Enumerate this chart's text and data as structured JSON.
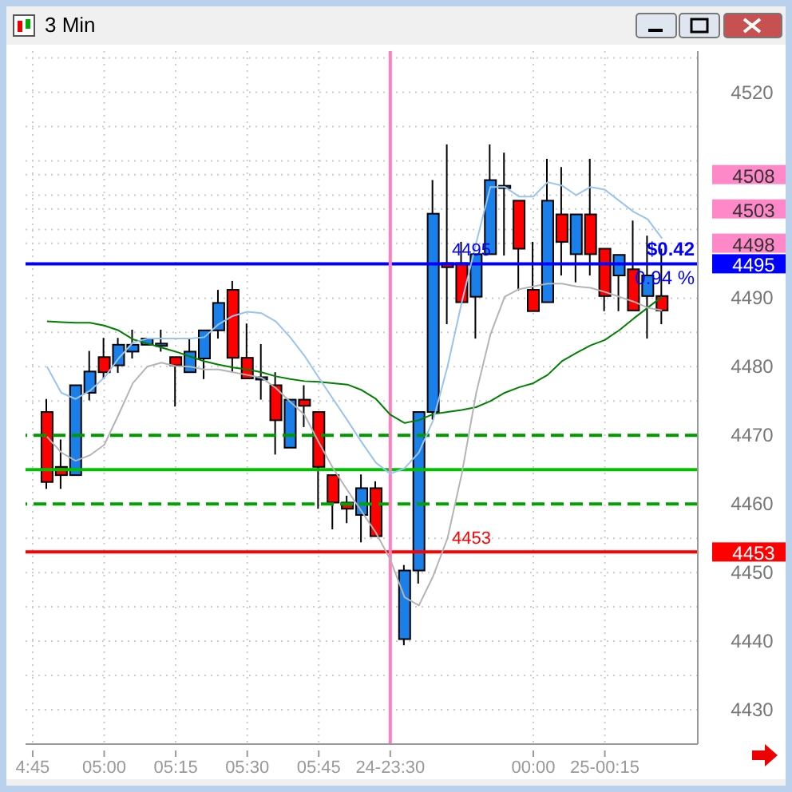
{
  "chart_data": {
    "type": "candlestick",
    "title": "3 Min",
    "categories": [
      "4:45",
      null,
      null,
      null,
      null,
      "05:00",
      null,
      null,
      null,
      null,
      "05:15",
      null,
      null,
      null,
      null,
      "05:30",
      null,
      null,
      null,
      null,
      "05:45",
      null,
      null,
      null,
      null,
      "24-23:30",
      null,
      null,
      null,
      null,
      null,
      null,
      null,
      null,
      null,
      "00:00",
      null,
      null,
      null,
      null,
      "25-00:15",
      null,
      null,
      null,
      null,
      null,
      null
    ],
    "ohlc": [
      null,
      [
        4473.4,
        4475.3,
        4462.2,
        4463.2
      ],
      [
        4465.4,
        4469.4,
        4462.2,
        4464.2
      ],
      [
        4464.2,
        4477.3,
        4464.2,
        4477.3
      ],
      [
        4476.2,
        4482.3,
        4475.1,
        4479.3
      ],
      [
        4481.4,
        4484.2,
        4478.2,
        4479.2
      ],
      [
        4480.2,
        4484.2,
        4479.1,
        4483.2
      ],
      [
        4482.2,
        4485.4,
        4481.2,
        4483.2
      ],
      [
        4483.2,
        4484.1,
        4483.2,
        4484.1
      ],
      [
        4483.2,
        4485.4,
        4482.2,
        4483.2
      ],
      [
        4481.4,
        4481.4,
        4474.2,
        4480.2
      ],
      [
        4479.2,
        4484.2,
        4479.2,
        4482.2
      ],
      [
        4481.2,
        4485.3,
        4478.2,
        4485.3
      ],
      [
        4485.3,
        4491.2,
        4484.1,
        4489.3
      ],
      [
        4491.2,
        4492.5,
        4479.2,
        4481.3
      ],
      [
        4481.3,
        4486.3,
        4478.3,
        4478.3
      ],
      [
        4478.3,
        4483.3,
        4475.2,
        4478.3
      ],
      [
        4477.3,
        4479.2,
        4467.2,
        4472.2
      ],
      [
        4468.2,
        4475.2,
        4468.2,
        4475.2
      ],
      [
        4475.2,
        4477.3,
        4471.2,
        4474.3
      ],
      [
        4473.4,
        4473.4,
        4459.3,
        4465.4
      ],
      [
        4464.2,
        4464.2,
        4456.3,
        4460.2
      ],
      [
        4460.2,
        4461.2,
        4457.2,
        4459.3
      ],
      [
        4458.4,
        4464.3,
        4454.4,
        4462.3
      ],
      [
        4462.3,
        4463.3,
        4455.3,
        4455.3
      ],
      null,
      [
        4440.3,
        4451.1,
        4439.4,
        4450.3
      ],
      [
        4450.3,
        4473.4,
        4448.4,
        4473.4
      ],
      [
        4473.4,
        4507.2,
        4472.3,
        4502.3
      ],
      [
        4495.1,
        4512.4,
        4486.2,
        4494.5
      ],
      [
        4495.1,
        4498.2,
        4489.4,
        4489.4
      ],
      [
        4490.2,
        4496.4,
        4484.1,
        4496.4
      ],
      [
        4496.4,
        4512.4,
        4496.4,
        4507.2
      ],
      [
        4506.2,
        4511.2,
        4496.2,
        4506.2
      ],
      [
        4504.2,
        4504.2,
        4491.1,
        4497.2
      ],
      [
        4491.2,
        4498.2,
        4488.1,
        4488.1
      ],
      [
        4489.4,
        4510.3,
        4489.4,
        4504.2
      ],
      [
        4502.2,
        4509.1,
        4493.3,
        4498.2
      ],
      [
        4496.4,
        4502.2,
        4492.3,
        4502.2
      ],
      [
        4502.2,
        4510.3,
        4493.3,
        4496.4
      ],
      [
        4497.2,
        4497.2,
        4488.1,
        4490.3
      ],
      [
        4493.3,
        4496.3,
        4488.1,
        4496.3
      ],
      [
        4494.2,
        4501.3,
        4488.2,
        4488.2
      ],
      [
        4490.3,
        4499.1,
        4484.1,
        4493.3
      ],
      [
        4490.3,
        4497.2,
        4486.2,
        4488.2
      ],
      null,
      null
    ],
    "colors": [
      null,
      "#ff0000",
      "#ff0000",
      "#1a7fe8",
      "#1a7fe8",
      "#ff0000",
      "#1a7fe8",
      "#1a7fe8",
      "#1a7fe8",
      "#1a7fe8",
      "#ff0000",
      "#1a7fe8",
      "#1a7fe8",
      "#1a7fe8",
      "#ff0000",
      "#ff0000",
      "#1a7fe8",
      "#ff0000",
      "#1a7fe8",
      "#ff0000",
      "#ff0000",
      "#ff0000",
      "#ff0000",
      "#1a7fe8",
      "#ff0000",
      null,
      "#1a7fe8",
      "#1a7fe8",
      "#1a7fe8",
      "#ff0000",
      "#ff0000",
      "#1a7fe8",
      "#1a7fe8",
      "#1a7fe8",
      "#ff0000",
      "#ff0000",
      "#1a7fe8",
      "#ff0000",
      "#1a7fe8",
      "#ff0000",
      "#ff0000",
      "#1a7fe8",
      "#ff0000",
      "#1a7fe8",
      "#ff0000",
      null,
      null
    ],
    "series": [
      {
        "type": "line",
        "color": "#008000",
        "values": [
          null,
          4486.6,
          4486.5,
          4486.4,
          4486.4,
          4486.0,
          4485.3,
          4484.0,
          4483.4,
          4482.8,
          4482.2,
          4481.5,
          4480.8,
          4480.3,
          4479.9,
          4479.6,
          4479.2,
          4478.6,
          4478.2,
          4477.9,
          4477.8,
          4477.6,
          4477.4,
          4476.6,
          4475.3,
          4473.0,
          4471.8,
          4472.2,
          4473.1,
          4473.4,
          4473.7,
          4474.1,
          4475.0,
          4476.2,
          4477.0,
          4477.6,
          4478.8,
          4480.8,
          4482.0,
          4483.1,
          4483.9,
          4485.3,
          4487.0,
          4488.6,
          4490.2,
          null,
          null
        ]
      },
      {
        "type": "line",
        "color": "#99c4f0",
        "values": [
          null,
          4480.0,
          4476.2,
          4475.3,
          4476.5,
          4478.4,
          4481.2,
          4483.5,
          4484.1,
          4484.1,
          4484.1,
          4484.1,
          4484.3,
          4486.2,
          4487.4,
          4488.0,
          4487.8,
          4486.6,
          4484.3,
          4481.6,
          4478.4,
          4475.3,
          4472.2,
          4469.0,
          4466.0,
          4464.4,
          4465.2,
          4467.5,
          4472.2,
          4480.0,
          4489.4,
          4498.0,
          4506.2,
          4506.2,
          4504.8,
          4504.8,
          4506.9,
          4506.4,
          4505.0,
          4506.2,
          4505.8,
          4504.2,
          4502.6,
          4501.5,
          4498.7,
          null,
          null
        ]
      },
      {
        "type": "line",
        "color": "#b4b4b4",
        "values": [
          null,
          4469.8,
          4467.5,
          4466.3,
          4467.1,
          4468.6,
          4473.0,
          4477.6,
          4480.0,
          4480.6,
          4480.1,
          4480.0,
          4479.6,
          4479.6,
          4479.2,
          4478.8,
          4478.4,
          4476.9,
          4474.9,
          4473.0,
          4469.0,
          4465.2,
          4462.0,
          4458.9,
          4455.8,
          4451.9,
          4446.4,
          4445.2,
          4449.5,
          4455.0,
          4464.4,
          4476.1,
          4484.7,
          4490.2,
          4491.3,
          4491.7,
          4492.1,
          4492.1,
          4491.7,
          4491.5,
          4490.9,
          4490.2,
          4489.5,
          4488.6,
          4488.2,
          null,
          null
        ]
      }
    ],
    "ylim": [
      4425,
      4526
    ],
    "yticks": [
      {
        "value": 4425,
        "label": null
      },
      4430,
      {
        "value": 4435,
        "label": null
      },
      4440,
      {
        "value": 4445,
        "label": null
      },
      4450,
      {
        "value": 4455,
        "label": null
      },
      4460,
      {
        "value": 4465,
        "label": null
      },
      4470,
      {
        "value": 4475,
        "label": null
      },
      4480,
      {
        "value": 4485,
        "label": null
      },
      4490,
      4495,
      {
        "value": 4500,
        "label": null
      },
      {
        "value": 4505,
        "label": null
      },
      {
        "value": 4510,
        "label": null
      },
      {
        "value": 4515,
        "label": null
      },
      4520,
      {
        "value": 4525,
        "label": null
      },
      4453,
      4498,
      4503,
      4508
    ],
    "ref_lines": [
      {
        "axis": "y",
        "value": 4495,
        "label": "4495",
        "color": "#0000ff"
      },
      {
        "axis": "y",
        "value": 4453,
        "label": "4453",
        "color": "#ff0000"
      },
      {
        "axis": "y",
        "value": 4465,
        "color": "#00c000"
      },
      {
        "axis": "y",
        "value": 4470,
        "color": "#009900",
        "line_style": "dashed"
      },
      {
        "axis": "y",
        "value": 4460,
        "color": "#00a300",
        "line_style": "dashed"
      },
      {
        "axis": "x",
        "value": "24-23:30",
        "color": "#ff80c0"
      }
    ],
    "annotations": [
      "$0.42",
      "0.94 %"
    ],
    "grid": true
  }
}
